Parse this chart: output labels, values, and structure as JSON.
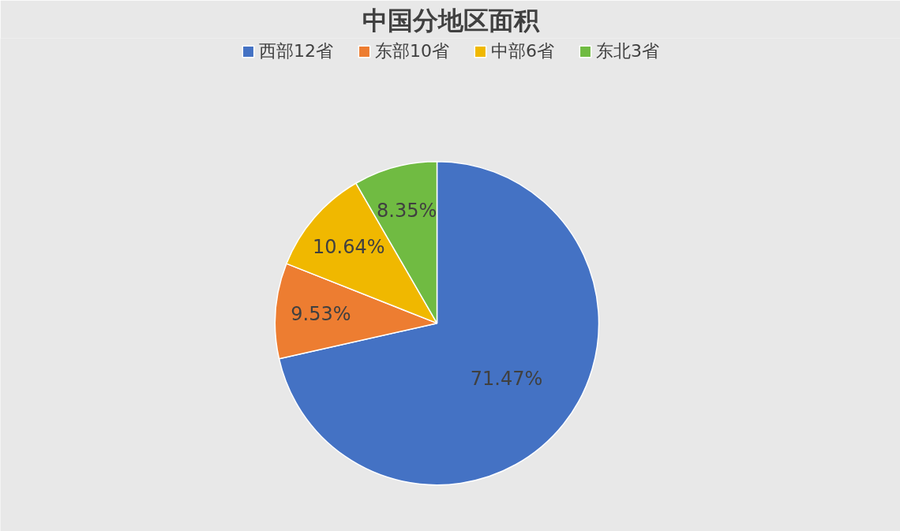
{
  "chart_data": {
    "type": "pie",
    "title": "中国分地区面积",
    "categories": [
      "西部12省",
      "东部10省",
      "中部6省",
      "东北3省"
    ],
    "values": [
      71.47,
      9.53,
      10.64,
      8.35
    ],
    "colors": [
      "#4472c4",
      "#ed7d31",
      "#f0b800",
      "#70bb42"
    ],
    "value_labels": [
      "71.47%",
      "9.53%",
      "10.64%",
      "8.35%"
    ],
    "legend": "top"
  }
}
